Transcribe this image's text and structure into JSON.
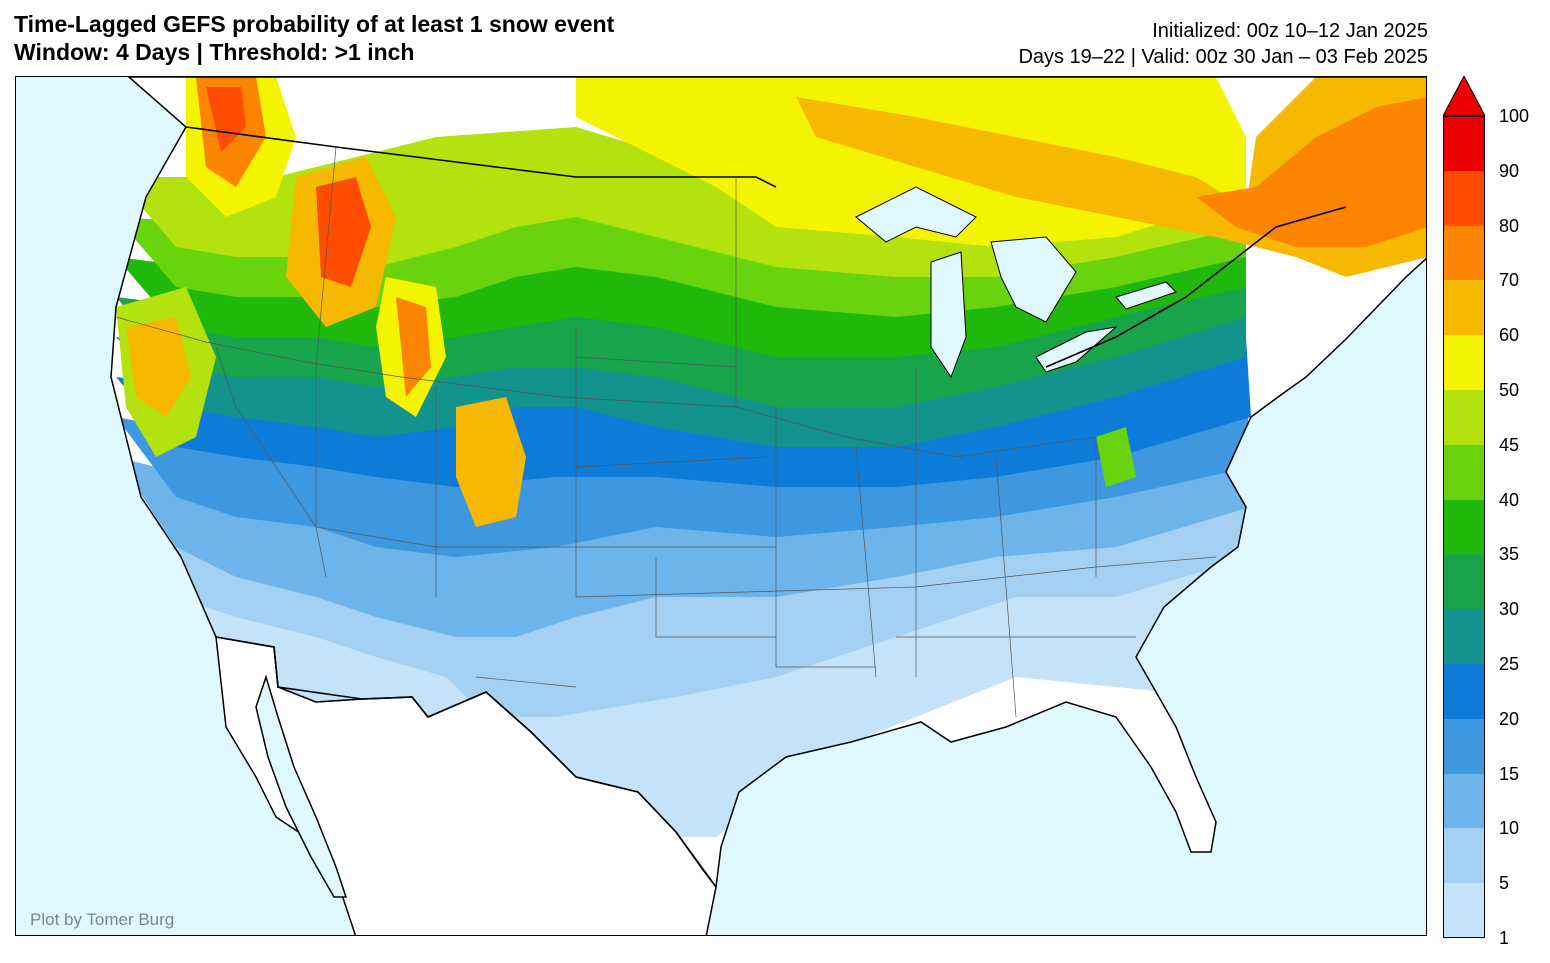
{
  "title": {
    "line1": "Time-Lagged GEFS probability of at least 1 snow event",
    "line2": "Window: 4 Days | Threshold: >1 inch"
  },
  "info": {
    "initialized": "Initialized: 00z 10–12 Jan 2025",
    "valid": "Days 19–22 | Valid: 00z 30 Jan – 03 Feb 2025"
  },
  "credit": "Plot by Tomer Burg",
  "colorbar": {
    "levels": [
      {
        "value": "1",
        "color": "#c4e3f8"
      },
      {
        "value": "5",
        "color": "#a3d0f3"
      },
      {
        "value": "10",
        "color": "#6db4ea"
      },
      {
        "value": "15",
        "color": "#3e98e0"
      },
      {
        "value": "20",
        "color": "#0f7bd8"
      },
      {
        "value": "25",
        "color": "#13938e"
      },
      {
        "value": "30",
        "color": "#17a44a"
      },
      {
        "value": "35",
        "color": "#1fb80b"
      },
      {
        "value": "40",
        "color": "#69d30d"
      },
      {
        "value": "45",
        "color": "#b3e20f"
      },
      {
        "value": "50",
        "color": "#f5f400"
      },
      {
        "value": "60",
        "color": "#f6b900"
      },
      {
        "value": "70",
        "color": "#fb8400"
      },
      {
        "value": "80",
        "color": "#fe4d00"
      },
      {
        "value": "90",
        "color": "#ef0000"
      },
      {
        "value": "100",
        "color": ""
      }
    ],
    "extend": "max"
  },
  "map": {
    "ocean_color": "#e0f8ff",
    "land_color": "#ffffff"
  }
}
